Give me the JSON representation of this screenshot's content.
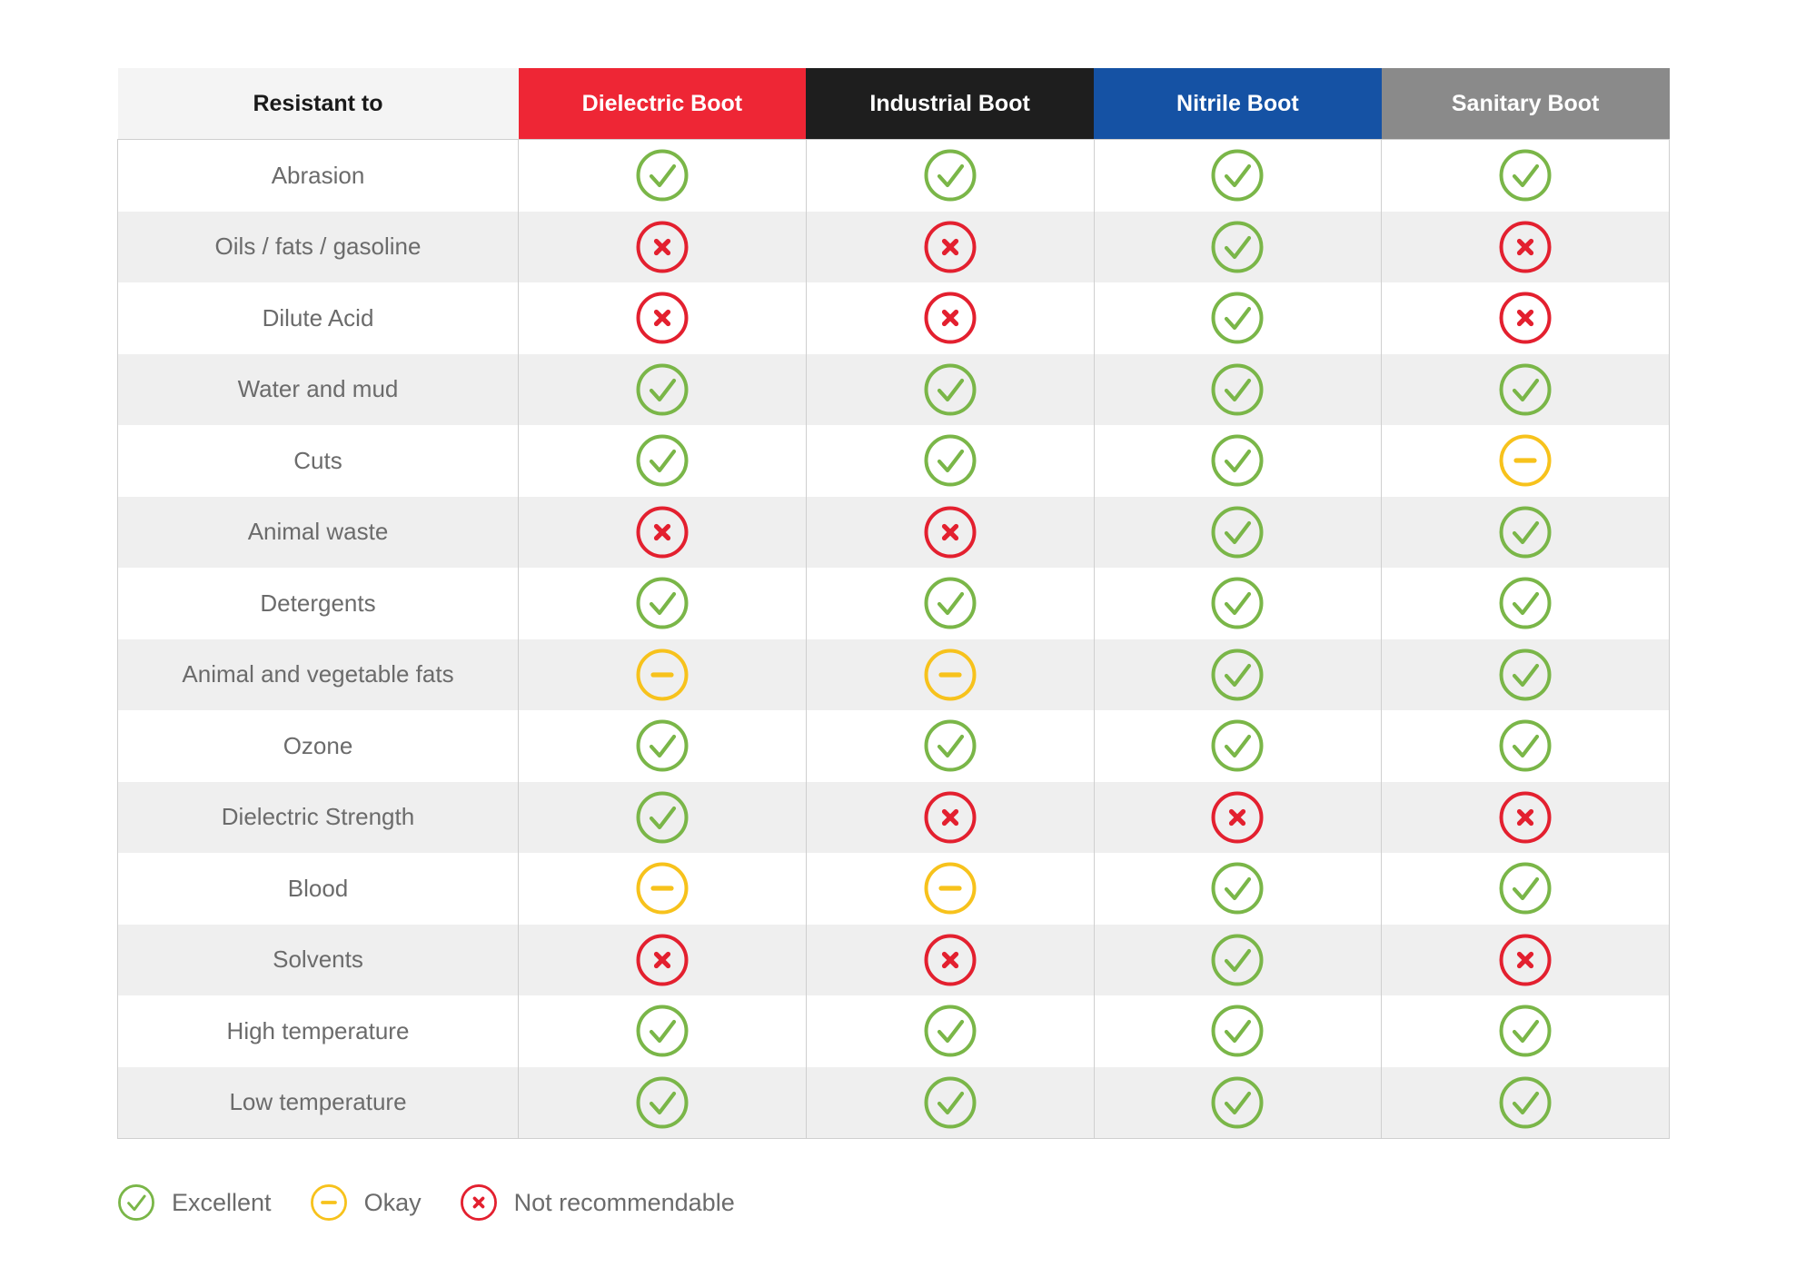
{
  "chart_data": {
    "type": "table",
    "header_label": "Resistant to",
    "columns": [
      {
        "name": "Dielectric Boot",
        "color": "#ee2635"
      },
      {
        "name": "Industrial Boot",
        "color": "#1e1e1e"
      },
      {
        "name": "Nitrile Boot",
        "color": "#1552a4"
      },
      {
        "name": "Sanitary Boot",
        "color": "#8a8a8a"
      }
    ],
    "rows": [
      {
        "label": "Abrasion",
        "values": [
          "excellent",
          "excellent",
          "excellent",
          "excellent"
        ]
      },
      {
        "label": "Oils / fats / gasoline",
        "values": [
          "not_recommendable",
          "not_recommendable",
          "excellent",
          "not_recommendable"
        ]
      },
      {
        "label": "Dilute Acid",
        "values": [
          "not_recommendable",
          "not_recommendable",
          "excellent",
          "not_recommendable"
        ]
      },
      {
        "label": "Water and mud",
        "values": [
          "excellent",
          "excellent",
          "excellent",
          "excellent"
        ]
      },
      {
        "label": "Cuts",
        "values": [
          "excellent",
          "excellent",
          "excellent",
          "okay"
        ]
      },
      {
        "label": "Animal waste",
        "values": [
          "not_recommendable",
          "not_recommendable",
          "excellent",
          "excellent"
        ]
      },
      {
        "label": "Detergents",
        "values": [
          "excellent",
          "excellent",
          "excellent",
          "excellent"
        ]
      },
      {
        "label": "Animal and vegetable fats",
        "values": [
          "okay",
          "okay",
          "excellent",
          "excellent"
        ]
      },
      {
        "label": "Ozone",
        "values": [
          "excellent",
          "excellent",
          "excellent",
          "excellent"
        ]
      },
      {
        "label": "Dielectric Strength",
        "values": [
          "excellent",
          "not_recommendable",
          "not_recommendable",
          "not_recommendable"
        ]
      },
      {
        "label": "Blood",
        "values": [
          "okay",
          "okay",
          "excellent",
          "excellent"
        ]
      },
      {
        "label": "Solvents",
        "values": [
          "not_recommendable",
          "not_recommendable",
          "excellent",
          "not_recommendable"
        ]
      },
      {
        "label": "High temperature",
        "values": [
          "excellent",
          "excellent",
          "excellent",
          "excellent"
        ]
      },
      {
        "label": "Low temperature",
        "values": [
          "excellent",
          "excellent",
          "excellent",
          "excellent"
        ]
      }
    ],
    "legend": [
      {
        "key": "excellent",
        "label": "Excellent",
        "icon": "check-circle-icon",
        "color": "#7ab648"
      },
      {
        "key": "okay",
        "label": "Okay",
        "icon": "minus-circle-icon",
        "color": "#f7c21c"
      },
      {
        "key": "not_recommendable",
        "label": "Not recommendable",
        "icon": "x-circle-icon",
        "color": "#e3202f"
      }
    ],
    "legend_position": "bottom-left"
  }
}
